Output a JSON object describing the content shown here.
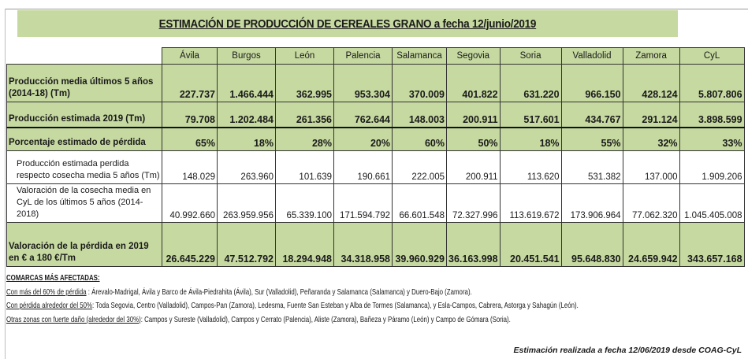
{
  "title": "ESTIMACIÓN DE PRODUCCIÓN DE CEREALES GRANO  a fecha 12/junio/2019",
  "columns": [
    "Ávila",
    "Burgos",
    "León",
    "Palencia",
    "Salamanca",
    "Segovia",
    "Soria",
    "Valladolid",
    "Zamora",
    "CyL"
  ],
  "rows": [
    {
      "label": "Producción media últimos 5 años (2014-18)  (Tm)",
      "values": [
        "227.737",
        "1.466.444",
        "362.995",
        "953.304",
        "370.009",
        "401.822",
        "631.220",
        "966.150",
        "428.124",
        "5.807.806"
      ]
    },
    {
      "label": "Producción estimada 2019 (Tm)",
      "values": [
        "79.708",
        "1.202.484",
        "261.356",
        "762.644",
        "148.003",
        "200.911",
        "517.601",
        "434.767",
        "291.124",
        "3.898.599"
      ]
    },
    {
      "label": "Porcentaje estimado de pérdida",
      "values": [
        "65%",
        "18%",
        "28%",
        "20%",
        "60%",
        "50%",
        "18%",
        "55%",
        "32%",
        "33%"
      ]
    },
    {
      "label": "Producción estimada  perdida respecto cosecha media 5 años (Tm)",
      "values": [
        "148.029",
        "263.960",
        "101.639",
        "190.661",
        "222.005",
        "200.911",
        "113.620",
        "531.382",
        "137.000",
        "1.909.206"
      ]
    },
    {
      "label": "Valoración de la cosecha media en CyL de los últimos 5 años (2014-2018)",
      "values": [
        "40.992.660",
        "263.959.956",
        "65.339.100",
        "171.594.792",
        "66.601.548",
        "72.327.996",
        "113.619.672",
        "173.906.964",
        "77.062.320",
        "1.045.405.008"
      ]
    },
    {
      "label": "Valoración de la pérdida en 2019 en € a 180 €/Tm",
      "values": [
        "26.645.229",
        "47.512.792",
        "18.294.948",
        "34.318.958",
        "39.960.929",
        "36.163.998",
        "20.451.541",
        "95.648.830",
        "24.659.942",
        "343.657.168"
      ]
    }
  ],
  "notes": {
    "heading": "COMARCAS MÁS AFECTADAS:",
    "items": [
      {
        "label": "Con más del 60% de pérdida",
        "text": " : Árevalo-Madrigal, Ávila y Barco de Ávila-Piedrahita (Ávila), Sur  (Valladolid), Peñaranda y Salamanca (Salamanca)  y Duero-Bajo (Zamora)."
      },
      {
        "label": "Con pérdida alrededor del 50%",
        "text": ": Toda Segovia, Centro (Valladolid), Campos-Pan (Zamora), Ledesma, Fuente San Esteban y Alba de Tormes (Salamanca), y Esla-Campos, Cabrera, Astorga y Sahagún (León)."
      },
      {
        "label": "Otras zonas con fuerte daño (alrededor del 30%)",
        "text": ": Campos y Sureste (Valladolid), Campos y Cerrato (Palencia), Aliste (Zamora), Bañeza y Páramo (León) y Campo de Gómara (Soria)."
      }
    ]
  },
  "footer": "Estimación realizada a fecha 12/06/2019 desde COAG-CyL"
}
